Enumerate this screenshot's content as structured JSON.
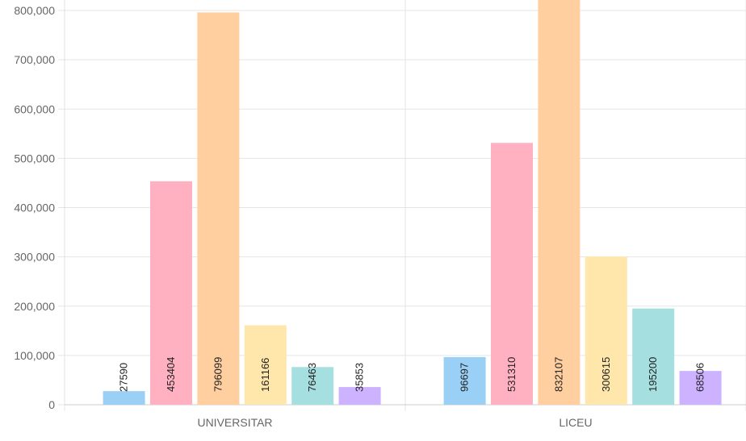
{
  "chart_data": {
    "type": "bar",
    "categories": [
      "UNIVERSITAR",
      "LICEU"
    ],
    "series": [
      {
        "values": [
          27590,
          96697
        ],
        "color": "#9ad0f5"
      },
      {
        "values": [
          453404,
          531310
        ],
        "color": "#ffb1c1"
      },
      {
        "values": [
          796099,
          832107
        ],
        "color": "#ffcf9f"
      },
      {
        "values": [
          161166,
          300615
        ],
        "color": "#ffe6aa"
      },
      {
        "values": [
          76463,
          195200
        ],
        "color": "#a5dfdf"
      },
      {
        "values": [
          35853,
          68506
        ],
        "color": "#ccb2ff"
      }
    ],
    "y_ticks": [
      "0",
      "100,000",
      "200,000",
      "300,000",
      "400,000",
      "500,000",
      "600,000",
      "700,000",
      "800,000"
    ],
    "ylim": [
      0,
      800000
    ],
    "grid": true,
    "legend": "none"
  }
}
